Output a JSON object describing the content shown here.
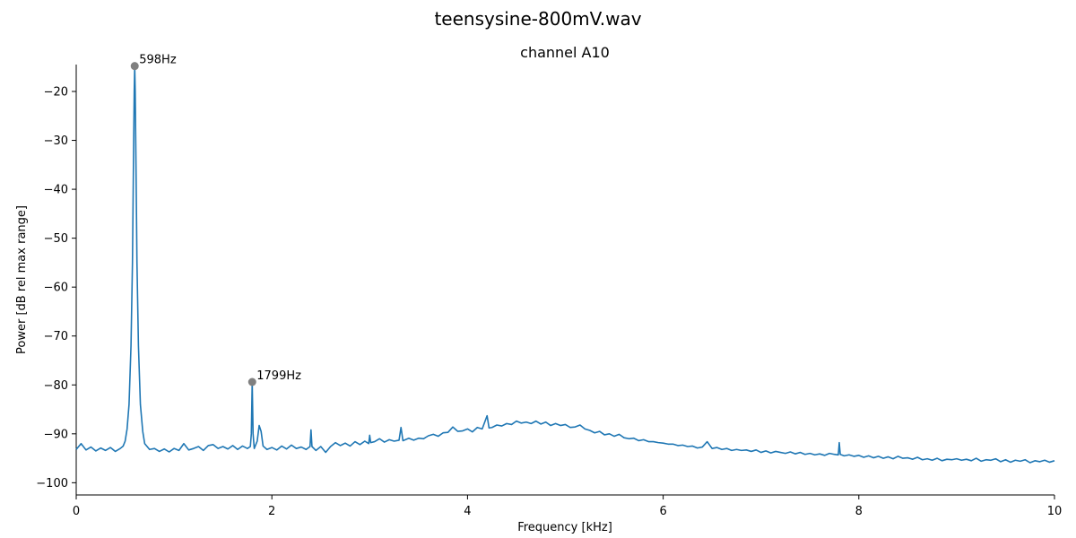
{
  "chart_data": {
    "type": "line",
    "title": "teensysine-800mV.wav",
    "subtitle": "channel A10",
    "xlabel": "Frequency [kHz]",
    "ylabel": "Power [dB rel max range]",
    "xlim": [
      0,
      10
    ],
    "ylim": [
      -102.5,
      -14.5
    ],
    "x_ticks": [
      0,
      2,
      4,
      6,
      8,
      10
    ],
    "y_ticks": [
      -100,
      -90,
      -80,
      -70,
      -60,
      -50,
      -40,
      -30,
      -20
    ],
    "grid": false,
    "line_color": "#1f77b4",
    "marker_color": "#808080",
    "series": [
      {
        "points": [
          [
            0.0,
            -93.2
          ],
          [
            0.05,
            -92.0
          ],
          [
            0.1,
            -93.3
          ],
          [
            0.15,
            -92.7
          ],
          [
            0.2,
            -93.5
          ],
          [
            0.25,
            -92.9
          ],
          [
            0.3,
            -93.4
          ],
          [
            0.35,
            -92.8
          ],
          [
            0.4,
            -93.6
          ],
          [
            0.45,
            -93.0
          ],
          [
            0.48,
            -92.5
          ],
          [
            0.5,
            -91.5
          ],
          [
            0.52,
            -89.0
          ],
          [
            0.54,
            -84.0
          ],
          [
            0.56,
            -72.0
          ],
          [
            0.575,
            -55.0
          ],
          [
            0.585,
            -35.0
          ],
          [
            0.593,
            -20.0
          ],
          [
            0.598,
            -14.8
          ],
          [
            0.603,
            -20.0
          ],
          [
            0.611,
            -35.0
          ],
          [
            0.621,
            -55.0
          ],
          [
            0.636,
            -72.0
          ],
          [
            0.656,
            -84.0
          ],
          [
            0.68,
            -89.5
          ],
          [
            0.7,
            -92.0
          ],
          [
            0.75,
            -93.2
          ],
          [
            0.8,
            -93.0
          ],
          [
            0.85,
            -93.6
          ],
          [
            0.9,
            -93.1
          ],
          [
            0.95,
            -93.7
          ],
          [
            1.0,
            -93.0
          ],
          [
            1.05,
            -93.4
          ],
          [
            1.1,
            -92.0
          ],
          [
            1.15,
            -93.3
          ],
          [
            1.2,
            -93.0
          ],
          [
            1.25,
            -92.6
          ],
          [
            1.3,
            -93.4
          ],
          [
            1.35,
            -92.4
          ],
          [
            1.4,
            -92.2
          ],
          [
            1.45,
            -93.0
          ],
          [
            1.5,
            -92.6
          ],
          [
            1.55,
            -93.1
          ],
          [
            1.6,
            -92.4
          ],
          [
            1.65,
            -93.2
          ],
          [
            1.7,
            -92.5
          ],
          [
            1.75,
            -93.0
          ],
          [
            1.78,
            -92.6
          ],
          [
            1.79,
            -90.0
          ],
          [
            1.799,
            -79.4
          ],
          [
            1.808,
            -90.0
          ],
          [
            1.82,
            -93.0
          ],
          [
            1.85,
            -91.5
          ],
          [
            1.87,
            -88.3
          ],
          [
            1.89,
            -89.5
          ],
          [
            1.91,
            -92.5
          ],
          [
            1.95,
            -93.2
          ],
          [
            2.0,
            -92.8
          ],
          [
            2.05,
            -93.3
          ],
          [
            2.1,
            -92.5
          ],
          [
            2.15,
            -93.1
          ],
          [
            2.2,
            -92.3
          ],
          [
            2.25,
            -93.0
          ],
          [
            2.3,
            -92.7
          ],
          [
            2.35,
            -93.2
          ],
          [
            2.39,
            -92.6
          ],
          [
            2.4,
            -89.2
          ],
          [
            2.41,
            -92.6
          ],
          [
            2.45,
            -93.4
          ],
          [
            2.5,
            -92.6
          ],
          [
            2.55,
            -93.8
          ],
          [
            2.6,
            -92.6
          ],
          [
            2.65,
            -91.8
          ],
          [
            2.7,
            -92.4
          ],
          [
            2.75,
            -91.9
          ],
          [
            2.8,
            -92.5
          ],
          [
            2.85,
            -91.6
          ],
          [
            2.9,
            -92.2
          ],
          [
            2.95,
            -91.5
          ],
          [
            2.99,
            -92.0
          ],
          [
            3.0,
            -90.3
          ],
          [
            3.01,
            -91.8
          ],
          [
            3.05,
            -91.6
          ],
          [
            3.1,
            -91.0
          ],
          [
            3.15,
            -91.7
          ],
          [
            3.2,
            -91.2
          ],
          [
            3.25,
            -91.5
          ],
          [
            3.3,
            -91.3
          ],
          [
            3.32,
            -88.7
          ],
          [
            3.34,
            -91.4
          ],
          [
            3.4,
            -90.9
          ],
          [
            3.45,
            -91.3
          ],
          [
            3.5,
            -90.9
          ],
          [
            3.55,
            -91.0
          ],
          [
            3.6,
            -90.4
          ],
          [
            3.65,
            -90.1
          ],
          [
            3.7,
            -90.5
          ],
          [
            3.75,
            -89.8
          ],
          [
            3.8,
            -89.7
          ],
          [
            3.85,
            -88.6
          ],
          [
            3.9,
            -89.5
          ],
          [
            3.95,
            -89.4
          ],
          [
            4.0,
            -89.0
          ],
          [
            4.05,
            -89.6
          ],
          [
            4.1,
            -88.7
          ],
          [
            4.15,
            -89.0
          ],
          [
            4.2,
            -86.3
          ],
          [
            4.22,
            -88.8
          ],
          [
            4.25,
            -88.7
          ],
          [
            4.3,
            -88.2
          ],
          [
            4.35,
            -88.4
          ],
          [
            4.4,
            -87.9
          ],
          [
            4.45,
            -88.1
          ],
          [
            4.5,
            -87.4
          ],
          [
            4.55,
            -87.8
          ],
          [
            4.6,
            -87.6
          ],
          [
            4.65,
            -87.9
          ],
          [
            4.7,
            -87.4
          ],
          [
            4.75,
            -88.0
          ],
          [
            4.8,
            -87.6
          ],
          [
            4.85,
            -88.3
          ],
          [
            4.9,
            -87.9
          ],
          [
            4.95,
            -88.3
          ],
          [
            5.0,
            -88.1
          ],
          [
            5.05,
            -88.7
          ],
          [
            5.1,
            -88.6
          ],
          [
            5.15,
            -88.2
          ],
          [
            5.2,
            -89.0
          ],
          [
            5.25,
            -89.3
          ],
          [
            5.3,
            -89.8
          ],
          [
            5.35,
            -89.5
          ],
          [
            5.4,
            -90.2
          ],
          [
            5.45,
            -90.0
          ],
          [
            5.5,
            -90.5
          ],
          [
            5.55,
            -90.1
          ],
          [
            5.6,
            -90.8
          ],
          [
            5.65,
            -91.0
          ],
          [
            5.7,
            -90.9
          ],
          [
            5.75,
            -91.4
          ],
          [
            5.8,
            -91.2
          ],
          [
            5.85,
            -91.6
          ],
          [
            5.9,
            -91.6
          ],
          [
            5.95,
            -91.8
          ],
          [
            6.0,
            -91.9
          ],
          [
            6.05,
            -92.1
          ],
          [
            6.1,
            -92.1
          ],
          [
            6.15,
            -92.4
          ],
          [
            6.2,
            -92.3
          ],
          [
            6.25,
            -92.6
          ],
          [
            6.3,
            -92.5
          ],
          [
            6.35,
            -92.9
          ],
          [
            6.4,
            -92.7
          ],
          [
            6.45,
            -91.6
          ],
          [
            6.5,
            -93.0
          ],
          [
            6.55,
            -92.8
          ],
          [
            6.6,
            -93.2
          ],
          [
            6.65,
            -93.0
          ],
          [
            6.7,
            -93.4
          ],
          [
            6.75,
            -93.2
          ],
          [
            6.8,
            -93.4
          ],
          [
            6.85,
            -93.3
          ],
          [
            6.9,
            -93.6
          ],
          [
            6.95,
            -93.3
          ],
          [
            7.0,
            -93.8
          ],
          [
            7.05,
            -93.5
          ],
          [
            7.1,
            -93.9
          ],
          [
            7.15,
            -93.6
          ],
          [
            7.2,
            -93.8
          ],
          [
            7.25,
            -94.0
          ],
          [
            7.3,
            -93.7
          ],
          [
            7.35,
            -94.1
          ],
          [
            7.4,
            -93.8
          ],
          [
            7.45,
            -94.2
          ],
          [
            7.5,
            -94.0
          ],
          [
            7.55,
            -94.3
          ],
          [
            7.6,
            -94.1
          ],
          [
            7.65,
            -94.4
          ],
          [
            7.7,
            -94.0
          ],
          [
            7.75,
            -94.2
          ],
          [
            7.79,
            -94.3
          ],
          [
            7.8,
            -91.8
          ],
          [
            7.81,
            -94.2
          ],
          [
            7.85,
            -94.5
          ],
          [
            7.9,
            -94.3
          ],
          [
            7.95,
            -94.6
          ],
          [
            8.0,
            -94.4
          ],
          [
            8.05,
            -94.8
          ],
          [
            8.1,
            -94.5
          ],
          [
            8.15,
            -94.9
          ],
          [
            8.2,
            -94.6
          ],
          [
            8.25,
            -95.0
          ],
          [
            8.3,
            -94.7
          ],
          [
            8.35,
            -95.1
          ],
          [
            8.4,
            -94.6
          ],
          [
            8.45,
            -95.0
          ],
          [
            8.5,
            -94.9
          ],
          [
            8.55,
            -95.2
          ],
          [
            8.6,
            -94.8
          ],
          [
            8.65,
            -95.3
          ],
          [
            8.7,
            -95.1
          ],
          [
            8.75,
            -95.4
          ],
          [
            8.8,
            -95.0
          ],
          [
            8.85,
            -95.5
          ],
          [
            8.9,
            -95.2
          ],
          [
            8.95,
            -95.3
          ],
          [
            9.0,
            -95.1
          ],
          [
            9.05,
            -95.4
          ],
          [
            9.1,
            -95.2
          ],
          [
            9.15,
            -95.5
          ],
          [
            9.2,
            -95.0
          ],
          [
            9.25,
            -95.6
          ],
          [
            9.3,
            -95.3
          ],
          [
            9.35,
            -95.4
          ],
          [
            9.4,
            -95.1
          ],
          [
            9.45,
            -95.7
          ],
          [
            9.5,
            -95.3
          ],
          [
            9.55,
            -95.8
          ],
          [
            9.6,
            -95.4
          ],
          [
            9.65,
            -95.6
          ],
          [
            9.7,
            -95.3
          ],
          [
            9.75,
            -95.9
          ],
          [
            9.8,
            -95.5
          ],
          [
            9.85,
            -95.7
          ],
          [
            9.9,
            -95.4
          ],
          [
            9.95,
            -95.8
          ],
          [
            10.0,
            -95.5
          ]
        ]
      }
    ],
    "peaks": [
      {
        "x": 0.598,
        "y": -14.8,
        "label": "598Hz"
      },
      {
        "x": 1.799,
        "y": -79.4,
        "label": "1799Hz"
      }
    ]
  }
}
